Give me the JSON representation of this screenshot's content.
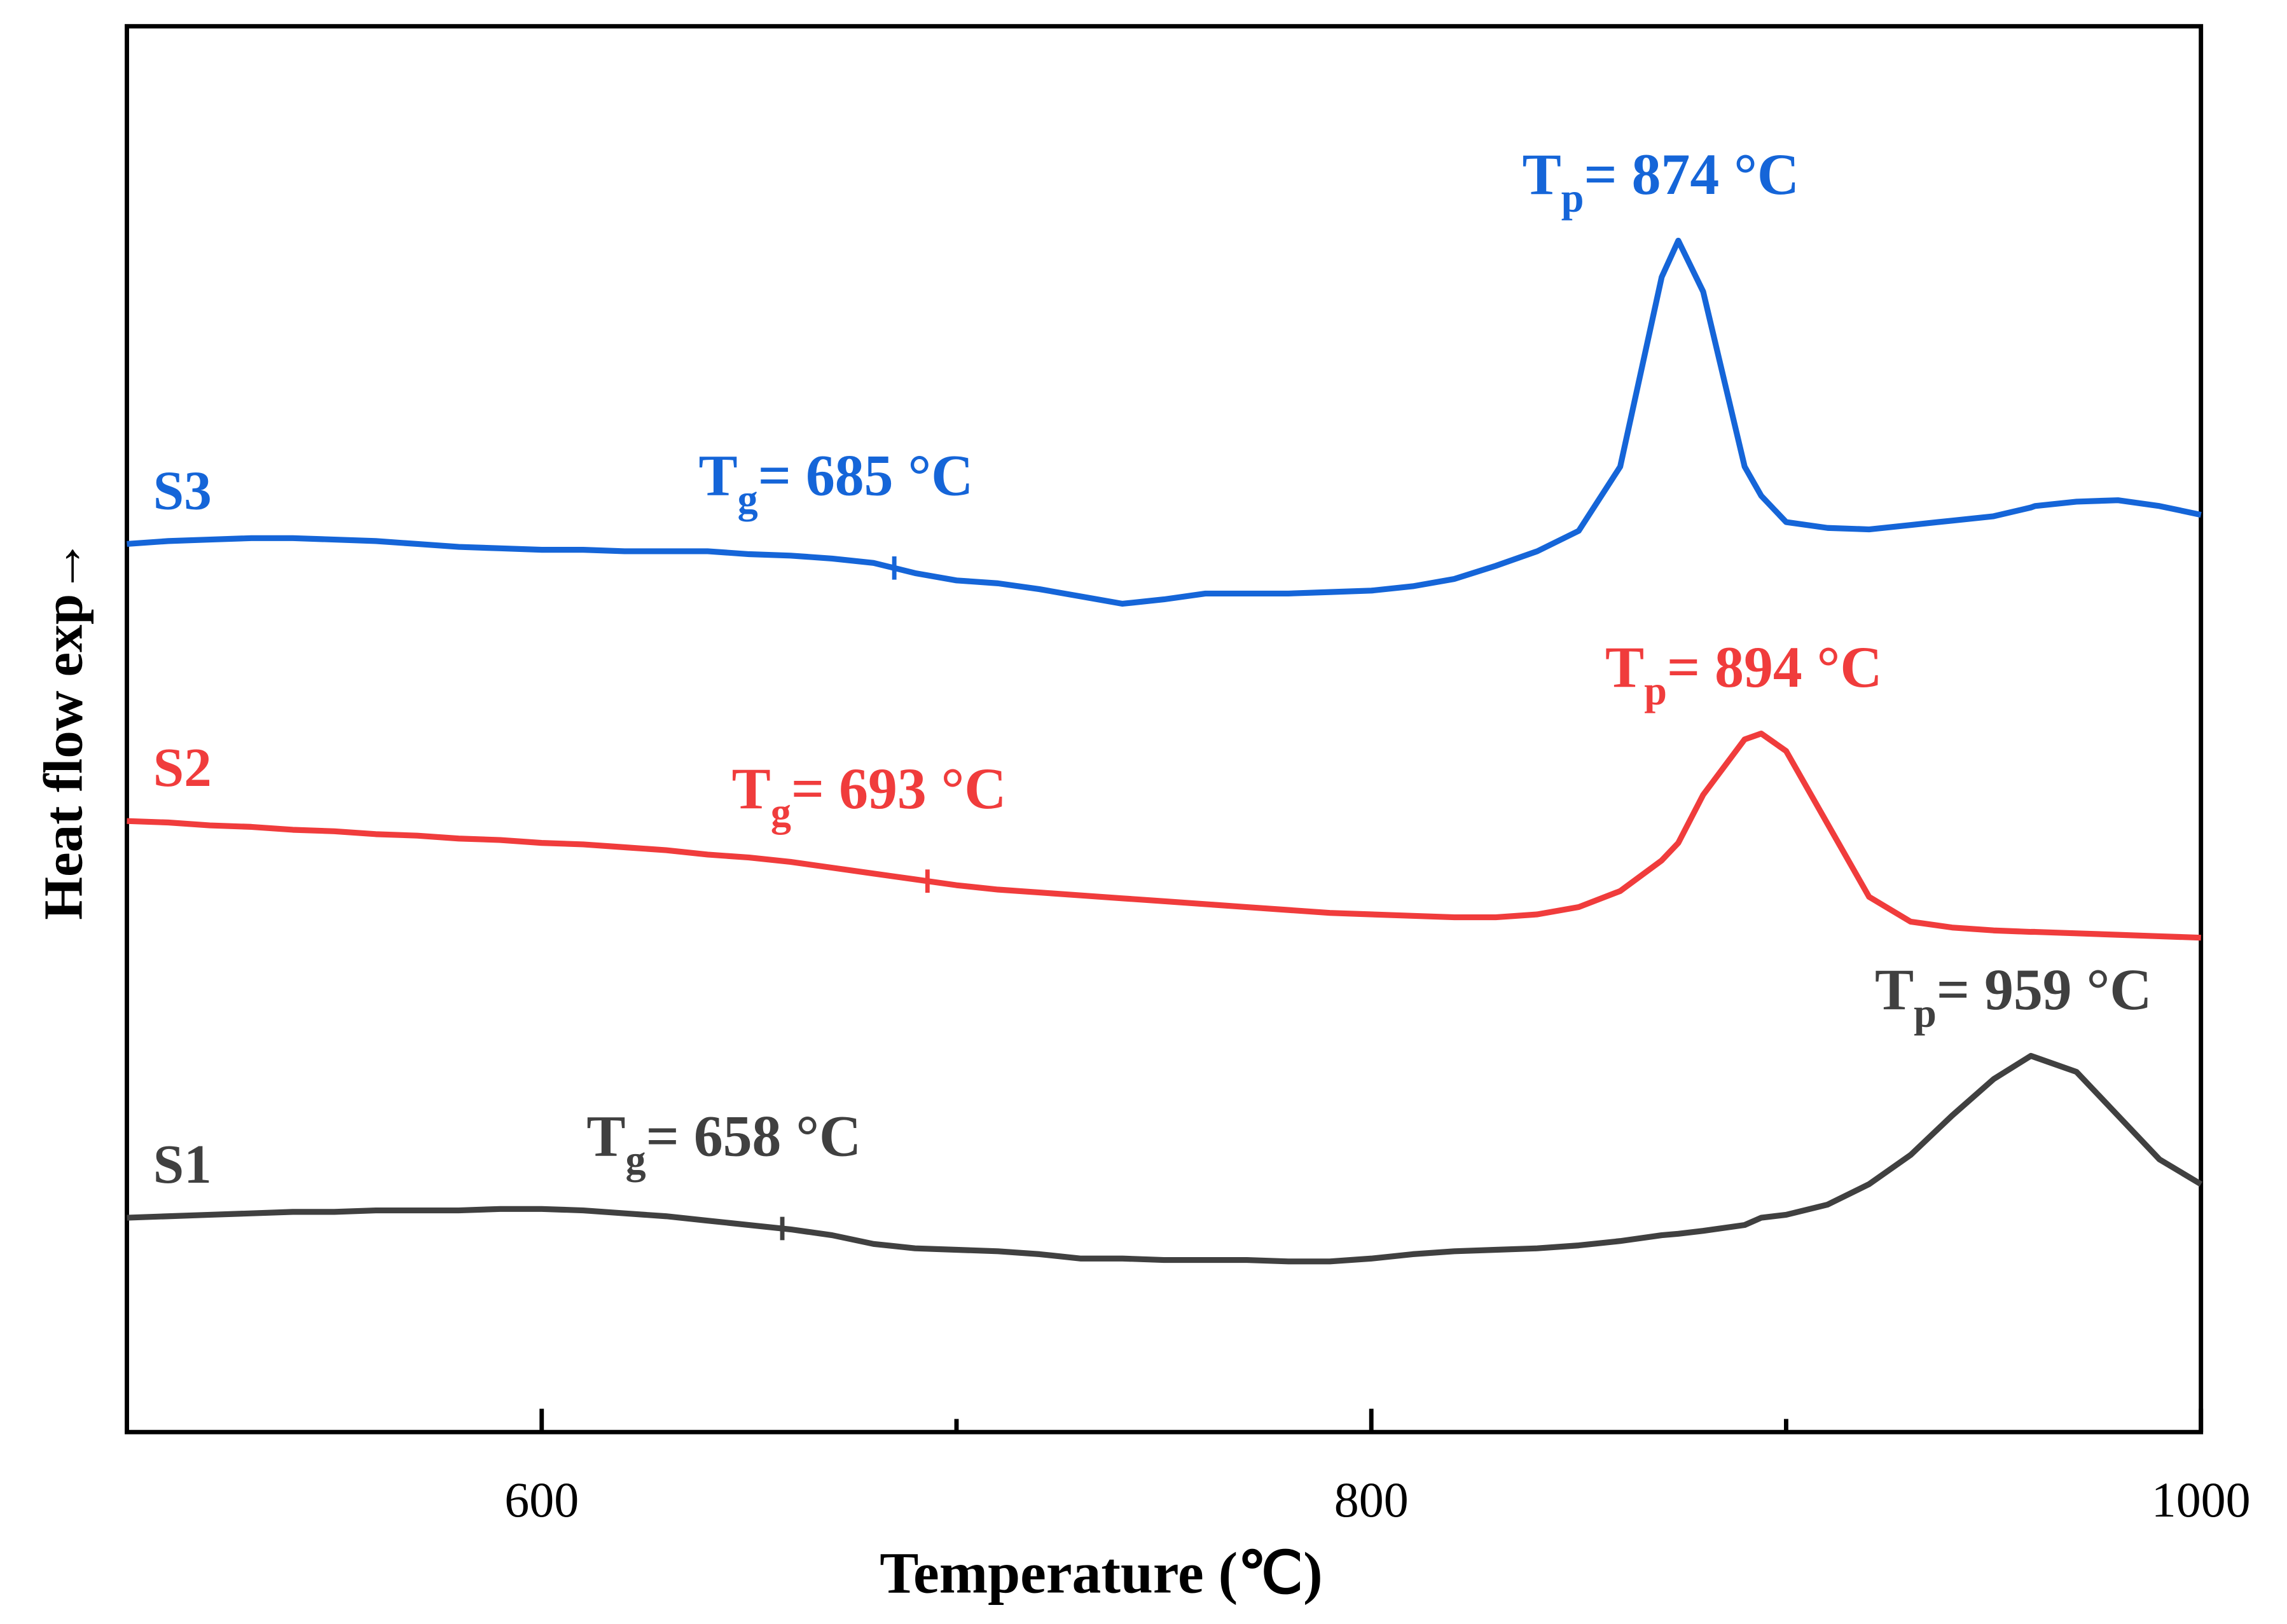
{
  "chart_data": {
    "type": "line",
    "xlabel": "Temperature (℃)",
    "ylabel": "Heat flow exp→",
    "xlim": [
      500,
      1000
    ],
    "xticks": [
      600,
      800,
      1000
    ],
    "xminor_ticks": [
      700,
      900
    ],
    "ylim": [
      0,
      964
    ],
    "x": [
      500,
      510,
      520,
      530,
      540,
      550,
      560,
      570,
      580,
      590,
      600,
      610,
      620,
      630,
      640,
      650,
      660,
      670,
      680,
      690,
      700,
      710,
      720,
      730,
      740,
      750,
      760,
      770,
      780,
      790,
      800,
      810,
      820,
      830,
      840,
      850,
      860,
      870,
      874,
      880,
      890,
      894,
      900,
      910,
      920,
      930,
      940,
      950,
      959,
      960,
      970,
      980,
      990,
      1000
    ],
    "series": [
      {
        "name": "S1",
        "color": "#404040",
        "values": [
          147,
          148,
          149,
          150,
          151,
          151,
          152,
          152,
          152,
          153,
          153,
          152,
          150,
          148,
          145,
          142,
          139,
          135,
          129,
          126,
          125,
          124,
          122,
          119,
          119,
          118,
          118,
          118,
          117,
          117,
          119,
          122,
          124,
          125,
          126,
          128,
          131,
          135,
          136,
          138,
          142,
          147,
          149,
          156,
          170,
          190,
          217,
          242,
          258,
          257,
          247,
          217,
          187,
          170
        ],
        "tg": {
          "symbol": "T",
          "subscript": "g",
          "label": "= 658 °C",
          "value": 658
        },
        "tp": {
          "symbol": "T",
          "subscript": "p",
          "label": "= 959 °C",
          "value": 959
        }
      },
      {
        "name": "S2",
        "color": "#f03c3c",
        "values": [
          419,
          418,
          416,
          415,
          413,
          412,
          410,
          409,
          407,
          406,
          404,
          403,
          401,
          399,
          396,
          394,
          391,
          387,
          383,
          379,
          375,
          372,
          370,
          368,
          366,
          364,
          362,
          360,
          358,
          356,
          355,
          354,
          353,
          353,
          355,
          360,
          371,
          392,
          404,
          437,
          475,
          479,
          467,
          417,
          367,
          350,
          346,
          344,
          343,
          343,
          342,
          341,
          340,
          339
        ],
        "tg": {
          "symbol": "T",
          "subscript": "g",
          "label": "= 693 °C",
          "value": 693
        },
        "tp": {
          "symbol": "T",
          "subscript": "p",
          "label": "= 894 °C",
          "value": 894
        }
      },
      {
        "name": "S3",
        "color": "#1565d8",
        "values": [
          609,
          611,
          612,
          613,
          613,
          612,
          611,
          609,
          607,
          606,
          605,
          605,
          604,
          604,
          604,
          602,
          601,
          599,
          596,
          589,
          584,
          582,
          578,
          573,
          568,
          571,
          575,
          575,
          575,
          576,
          577,
          580,
          585,
          594,
          604,
          618,
          662,
          792,
          817,
          782,
          662,
          642,
          624,
          620,
          619,
          622,
          625,
          628,
          634,
          635,
          638,
          639,
          635,
          629
        ],
        "tg": {
          "symbol": "T",
          "subscript": "g",
          "label": "= 685 °C",
          "value": 685
        },
        "tp": {
          "symbol": "T",
          "subscript": "p",
          "label": "= 874 °C",
          "value": 874
        }
      }
    ]
  }
}
